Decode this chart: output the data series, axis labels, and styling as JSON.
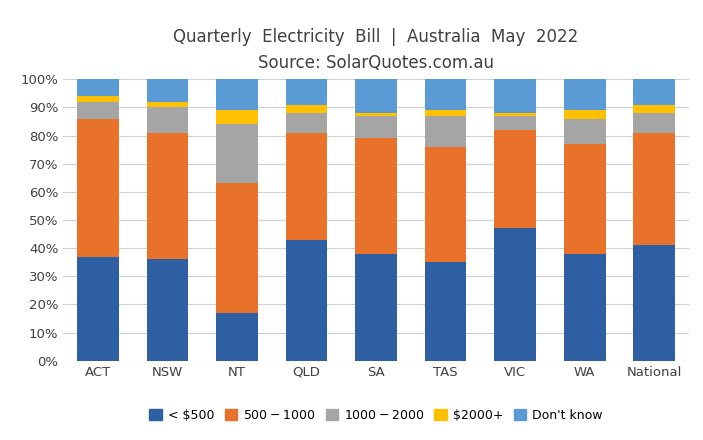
{
  "title_line1": "Quarterly  Electricity  Bill  |  Australia  May  2022",
  "title_line2": "Source: SolarQuotes.com.au",
  "categories": [
    "ACT",
    "NSW",
    "NT",
    "QLD",
    "SA",
    "TAS",
    "VIC",
    "WA",
    "National"
  ],
  "series": {
    "lt500": [
      37,
      36,
      17,
      43,
      38,
      35,
      47,
      38,
      41
    ],
    "s500_1000": [
      49,
      45,
      46,
      38,
      41,
      41,
      35,
      39,
      40
    ],
    "s1000_2000": [
      6,
      9,
      21,
      7,
      8,
      11,
      5,
      9,
      7
    ],
    "s2000plus": [
      2,
      2,
      5,
      3,
      1,
      2,
      1,
      3,
      3
    ],
    "dont_know": [
      6,
      8,
      11,
      9,
      12,
      11,
      12,
      11,
      9
    ]
  },
  "colors": {
    "lt500": "#2E5FA3",
    "s500_1000": "#E8722A",
    "s1000_2000": "#A5A5A5",
    "s2000plus": "#FFC000",
    "dont_know": "#5B9BD5"
  },
  "legend_labels": [
    "< $500",
    "$500 - $1000",
    "$1000- $2000",
    "$2000+",
    "Don't know"
  ],
  "ylim": [
    0,
    100
  ],
  "yticks": [
    0,
    10,
    20,
    30,
    40,
    50,
    60,
    70,
    80,
    90,
    100
  ],
  "ytick_labels": [
    "0%",
    "10%",
    "20%",
    "30%",
    "40%",
    "50%",
    "60%",
    "70%",
    "80%",
    "90%",
    "100%"
  ],
  "background_color": "#ffffff",
  "title_color": "#404040",
  "figsize": [
    7.03,
    4.4
  ],
  "dpi": 100
}
